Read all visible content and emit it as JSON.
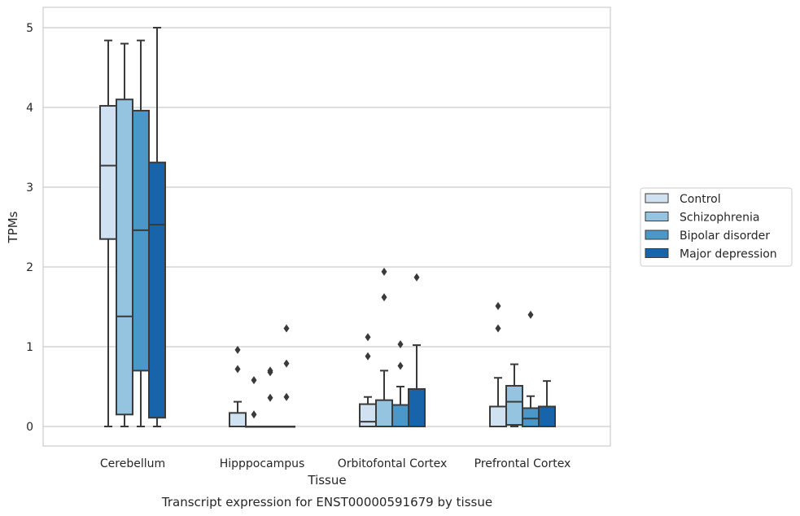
{
  "caption": "Transcript expression for ENST00000591679 by tissue",
  "chart_data": {
    "type": "box",
    "xlabel": "Tissue",
    "ylabel": "TPMs",
    "ylim": [
      -0.25,
      5.25
    ],
    "yticks": [
      0,
      1,
      2,
      3,
      4,
      5
    ],
    "grid": "horizontal",
    "legend_position": "right",
    "categories": [
      "Cerebellum",
      "Hipppocampus",
      "Orbitofontal Cortex",
      "Prefrontal Cortex"
    ],
    "series": [
      {
        "name": "Control",
        "color": "#d0e1f2",
        "boxes": [
          {
            "whislo": 0,
            "q1": 2.35,
            "med": 3.27,
            "q3": 4.02,
            "whishi": 4.84,
            "fliers": []
          },
          {
            "whislo": 0,
            "q1": 0,
            "med": 0,
            "q3": 0.17,
            "whishi": 0.31,
            "fliers": [
              0.72,
              0.96
            ]
          },
          {
            "whislo": 0,
            "q1": 0,
            "med": 0.06,
            "q3": 0.28,
            "whishi": 0.37,
            "fliers": [
              0.88,
              1.12
            ]
          },
          {
            "whislo": 0,
            "q1": 0,
            "med": 0,
            "q3": 0.25,
            "whishi": 0.61,
            "fliers": [
              1.23,
              1.51
            ]
          }
        ]
      },
      {
        "name": "Schizophrenia",
        "color": "#94c4df",
        "boxes": [
          {
            "whislo": 0,
            "q1": 0.15,
            "med": 1.38,
            "q3": 4.1,
            "whishi": 4.8,
            "fliers": []
          },
          {
            "whislo": 0,
            "q1": 0,
            "med": 0,
            "q3": 0,
            "whishi": 0,
            "fliers": [
              0.15,
              0.58
            ]
          },
          {
            "whislo": 0,
            "q1": 0,
            "med": 0,
            "q3": 0.33,
            "whishi": 0.7,
            "fliers": [
              1.62,
              1.94
            ]
          },
          {
            "whislo": 0,
            "q1": 0.02,
            "med": 0.31,
            "q3": 0.51,
            "whishi": 0.78,
            "fliers": []
          }
        ]
      },
      {
        "name": "Bipolar disorder",
        "color": "#4a98c9",
        "boxes": [
          {
            "whislo": 0,
            "q1": 0.7,
            "med": 2.46,
            "q3": 3.96,
            "whishi": 4.84,
            "fliers": []
          },
          {
            "whislo": 0,
            "q1": 0,
            "med": 0,
            "q3": 0,
            "whishi": 0,
            "fliers": [
              0.36,
              0.68,
              0.7
            ]
          },
          {
            "whislo": 0,
            "q1": 0,
            "med": 0,
            "q3": 0.27,
            "whishi": 0.5,
            "fliers": [
              0.76,
              1.03
            ]
          },
          {
            "whislo": 0,
            "q1": 0,
            "med": 0.1,
            "q3": 0.23,
            "whishi": 0.38,
            "fliers": [
              1.4
            ]
          }
        ]
      },
      {
        "name": "Major depression",
        "color": "#1764ab",
        "boxes": [
          {
            "whislo": 0,
            "q1": 0.11,
            "med": 2.53,
            "q3": 3.31,
            "whishi": 5.0,
            "fliers": []
          },
          {
            "whislo": 0,
            "q1": 0,
            "med": 0,
            "q3": 0,
            "whishi": 0,
            "fliers": [
              0.37,
              0.79,
              1.23
            ]
          },
          {
            "whislo": 0,
            "q1": 0,
            "med": 0,
            "q3": 0.47,
            "whishi": 1.02,
            "fliers": [
              1.87
            ]
          },
          {
            "whislo": 0,
            "q1": 0,
            "med": 0,
            "q3": 0.25,
            "whishi": 0.57,
            "fliers": []
          }
        ]
      }
    ]
  }
}
